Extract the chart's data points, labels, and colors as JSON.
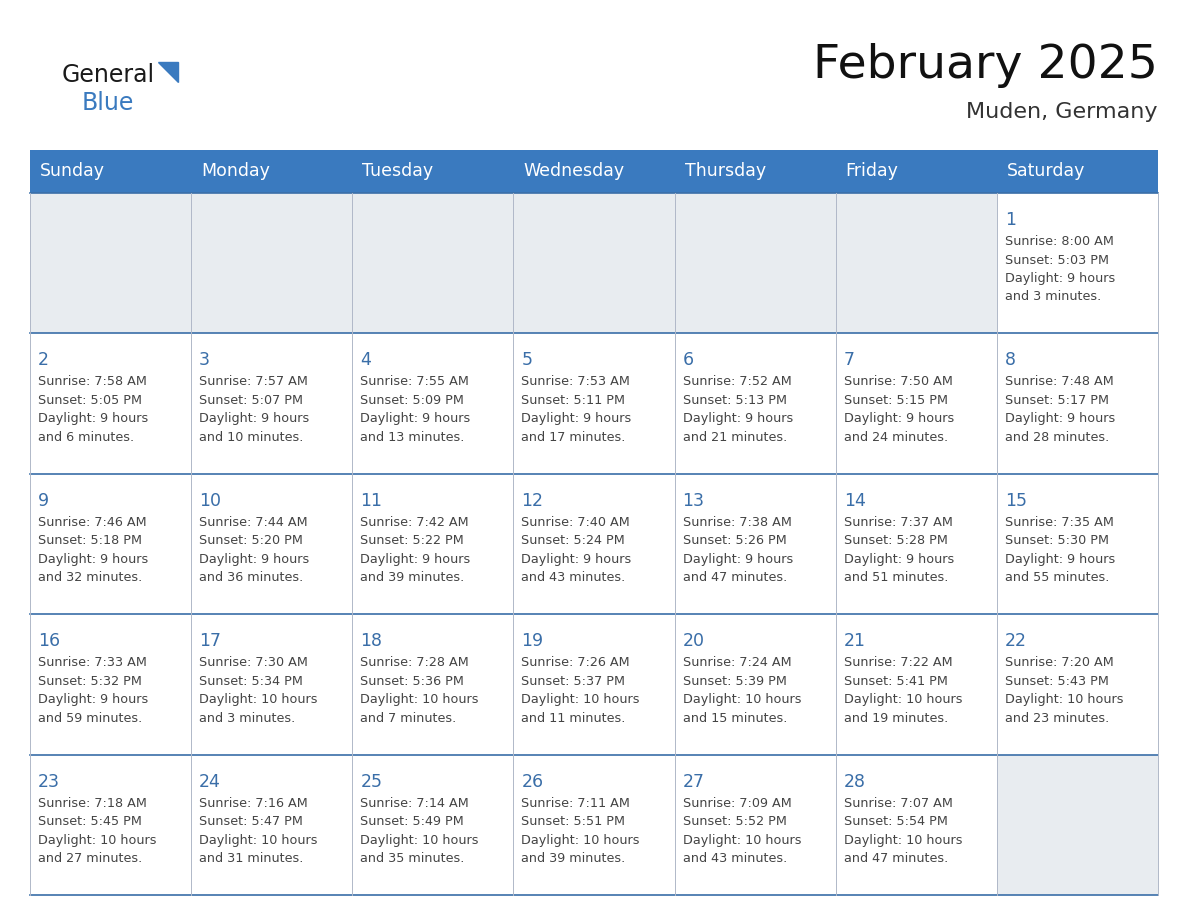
{
  "title": "February 2025",
  "subtitle": "Muden, Germany",
  "header_color": "#3a7abf",
  "header_text_color": "#ffffff",
  "days_of_week": [
    "Sunday",
    "Monday",
    "Tuesday",
    "Wednesday",
    "Thursday",
    "Friday",
    "Saturday"
  ],
  "bg_color": "#ffffff",
  "cell_border_color": "#b0b8c8",
  "row_separator_color": "#3a6ea8",
  "day_number_color": "#3a6ea8",
  "info_text_color": "#444444",
  "logo_general_color": "#1a1a1a",
  "logo_blue_color": "#3a7abf",
  "empty_cell_color": "#e8ecf0",
  "calendar_data": [
    [
      null,
      null,
      null,
      null,
      null,
      null,
      {
        "day": 1,
        "sunrise": "8:00 AM",
        "sunset": "5:03 PM",
        "daylight": "9 hours and 3 minutes."
      }
    ],
    [
      {
        "day": 2,
        "sunrise": "7:58 AM",
        "sunset": "5:05 PM",
        "daylight": "9 hours and 6 minutes."
      },
      {
        "day": 3,
        "sunrise": "7:57 AM",
        "sunset": "5:07 PM",
        "daylight": "9 hours and 10 minutes."
      },
      {
        "day": 4,
        "sunrise": "7:55 AM",
        "sunset": "5:09 PM",
        "daylight": "9 hours and 13 minutes."
      },
      {
        "day": 5,
        "sunrise": "7:53 AM",
        "sunset": "5:11 PM",
        "daylight": "9 hours and 17 minutes."
      },
      {
        "day": 6,
        "sunrise": "7:52 AM",
        "sunset": "5:13 PM",
        "daylight": "9 hours and 21 minutes."
      },
      {
        "day": 7,
        "sunrise": "7:50 AM",
        "sunset": "5:15 PM",
        "daylight": "9 hours and 24 minutes."
      },
      {
        "day": 8,
        "sunrise": "7:48 AM",
        "sunset": "5:17 PM",
        "daylight": "9 hours and 28 minutes."
      }
    ],
    [
      {
        "day": 9,
        "sunrise": "7:46 AM",
        "sunset": "5:18 PM",
        "daylight": "9 hours and 32 minutes."
      },
      {
        "day": 10,
        "sunrise": "7:44 AM",
        "sunset": "5:20 PM",
        "daylight": "9 hours and 36 minutes."
      },
      {
        "day": 11,
        "sunrise": "7:42 AM",
        "sunset": "5:22 PM",
        "daylight": "9 hours and 39 minutes."
      },
      {
        "day": 12,
        "sunrise": "7:40 AM",
        "sunset": "5:24 PM",
        "daylight": "9 hours and 43 minutes."
      },
      {
        "day": 13,
        "sunrise": "7:38 AM",
        "sunset": "5:26 PM",
        "daylight": "9 hours and 47 minutes."
      },
      {
        "day": 14,
        "sunrise": "7:37 AM",
        "sunset": "5:28 PM",
        "daylight": "9 hours and 51 minutes."
      },
      {
        "day": 15,
        "sunrise": "7:35 AM",
        "sunset": "5:30 PM",
        "daylight": "9 hours and 55 minutes."
      }
    ],
    [
      {
        "day": 16,
        "sunrise": "7:33 AM",
        "sunset": "5:32 PM",
        "daylight": "9 hours and 59 minutes."
      },
      {
        "day": 17,
        "sunrise": "7:30 AM",
        "sunset": "5:34 PM",
        "daylight": "10 hours and 3 minutes."
      },
      {
        "day": 18,
        "sunrise": "7:28 AM",
        "sunset": "5:36 PM",
        "daylight": "10 hours and 7 minutes."
      },
      {
        "day": 19,
        "sunrise": "7:26 AM",
        "sunset": "5:37 PM",
        "daylight": "10 hours and 11 minutes."
      },
      {
        "day": 20,
        "sunrise": "7:24 AM",
        "sunset": "5:39 PM",
        "daylight": "10 hours and 15 minutes."
      },
      {
        "day": 21,
        "sunrise": "7:22 AM",
        "sunset": "5:41 PM",
        "daylight": "10 hours and 19 minutes."
      },
      {
        "day": 22,
        "sunrise": "7:20 AM",
        "sunset": "5:43 PM",
        "daylight": "10 hours and 23 minutes."
      }
    ],
    [
      {
        "day": 23,
        "sunrise": "7:18 AM",
        "sunset": "5:45 PM",
        "daylight": "10 hours and 27 minutes."
      },
      {
        "day": 24,
        "sunrise": "7:16 AM",
        "sunset": "5:47 PM",
        "daylight": "10 hours and 31 minutes."
      },
      {
        "day": 25,
        "sunrise": "7:14 AM",
        "sunset": "5:49 PM",
        "daylight": "10 hours and 35 minutes."
      },
      {
        "day": 26,
        "sunrise": "7:11 AM",
        "sunset": "5:51 PM",
        "daylight": "10 hours and 39 minutes."
      },
      {
        "day": 27,
        "sunrise": "7:09 AM",
        "sunset": "5:52 PM",
        "daylight": "10 hours and 43 minutes."
      },
      {
        "day": 28,
        "sunrise": "7:07 AM",
        "sunset": "5:54 PM",
        "daylight": "10 hours and 47 minutes."
      },
      null
    ]
  ]
}
